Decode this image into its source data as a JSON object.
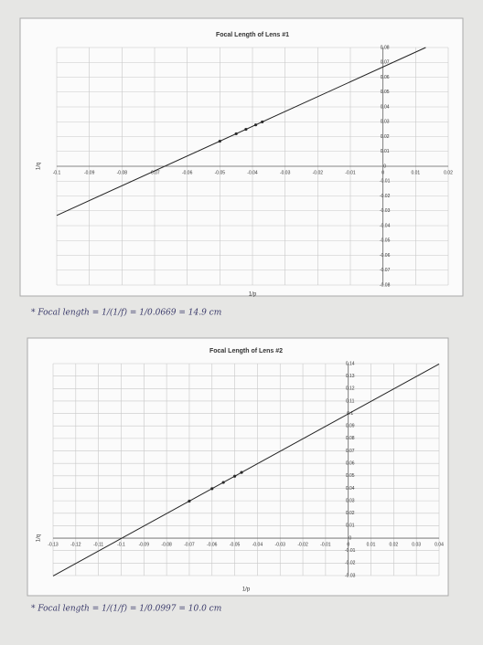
{
  "chart_data": [
    {
      "type": "scatter",
      "title": "Focal Length of Lens #1",
      "x_label": "1/p",
      "y_label": "1/q",
      "annotation": "* Focal length = 1/(1/f) = 1/0.0669 = 14.9 cm",
      "xlim": [
        -0.1,
        0.02
      ],
      "ylim": [
        -0.08,
        0.08
      ],
      "grid": true,
      "xticks": [
        -0.1,
        -0.09,
        -0.08,
        -0.07,
        -0.06,
        -0.05,
        -0.04,
        -0.03,
        -0.02,
        -0.01,
        0,
        0.01,
        0.02
      ],
      "yticks": [
        -0.08,
        -0.07,
        -0.06,
        -0.05,
        -0.04,
        -0.03,
        -0.02,
        -0.01,
        0,
        0.01,
        0.02,
        0.03,
        0.04,
        0.05,
        0.06,
        0.07,
        0.08
      ],
      "series": [
        {
          "mode": "markers",
          "color": "#333333",
          "x": [
            -0.05,
            -0.045,
            -0.042,
            -0.039,
            -0.037
          ],
          "values": [
            0.0169,
            0.0219,
            0.0249,
            0.0279,
            0.0299
          ]
        },
        {
          "mode": "line",
          "color": "#222222",
          "x": [
            -0.1,
            0.0131
          ],
          "values": [
            -0.0331,
            0.08
          ]
        }
      ]
    },
    {
      "type": "scatter",
      "title": "Focal Length of Lens #2",
      "x_label": "1/p",
      "y_label": "1/q",
      "annotation": "* Focal length = 1/(1/f) = 1/0.0997 = 10.0 cm",
      "xlim": [
        -0.13,
        0.04
      ],
      "ylim": [
        -0.03,
        0.14
      ],
      "grid": true,
      "xticks": [
        -0.13,
        -0.12,
        -0.11,
        -0.1,
        -0.09,
        -0.08,
        -0.07,
        -0.06,
        -0.05,
        -0.04,
        -0.03,
        -0.02,
        -0.01,
        0,
        0.01,
        0.02,
        0.03,
        0.04
      ],
      "yticks": [
        -0.03,
        -0.02,
        -0.01,
        0,
        0.01,
        0.02,
        0.03,
        0.04,
        0.05,
        0.06,
        0.07,
        0.08,
        0.09,
        0.1,
        0.11,
        0.12,
        0.13,
        0.14
      ],
      "series": [
        {
          "mode": "markers",
          "color": "#333333",
          "x": [
            -0.07,
            -0.06,
            -0.055,
            -0.05,
            -0.047
          ],
          "values": [
            0.0297,
            0.0397,
            0.0447,
            0.0497,
            0.0527
          ]
        },
        {
          "mode": "line",
          "color": "#222222",
          "x": [
            -0.13,
            0.04
          ],
          "values": [
            -0.0303,
            0.1397
          ]
        }
      ]
    }
  ]
}
